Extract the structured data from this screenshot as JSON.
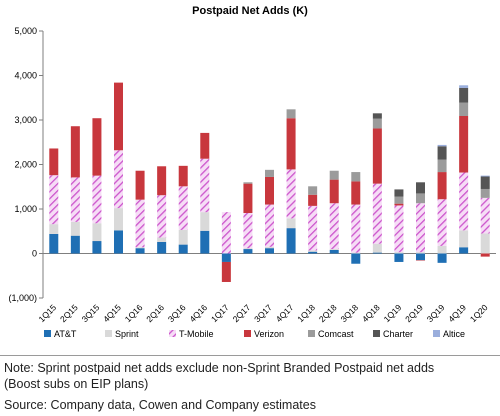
{
  "chart_data": {
    "type": "bar",
    "stacked": true,
    "title": "Postpaid Net Adds (K)",
    "xlabel": "",
    "ylabel": "",
    "ylim": [
      -1000,
      5000
    ],
    "yticks": [
      -1000,
      0,
      1000,
      2000,
      3000,
      4000,
      5000
    ],
    "ytick_labels": [
      "(1,000)",
      "0",
      "1,000",
      "2,000",
      "3,000",
      "4,000",
      "5,000"
    ],
    "grid": false,
    "legend_position": "bottom",
    "categories": [
      "1Q15",
      "2Q15",
      "3Q15",
      "4Q15",
      "1Q16",
      "2Q16",
      "3Q16",
      "4Q16",
      "1Q17",
      "2Q17",
      "3Q17",
      "4Q17",
      "1Q18",
      "2Q18",
      "3Q18",
      "4Q18",
      "1Q19",
      "2Q19",
      "3Q19",
      "4Q19",
      "1Q20"
    ],
    "series": [
      {
        "name": "AT&T",
        "color": "#1f6fb4",
        "values": [
          440,
          400,
          280,
          520,
          120,
          260,
          200,
          510,
          -190,
          100,
          120,
          570,
          40,
          80,
          -230,
          20,
          -190,
          -150,
          -210,
          140,
          0
        ]
      },
      {
        "name": "Sprint",
        "color": "#d9d9d9",
        "values": [
          220,
          310,
          400,
          500,
          20,
          100,
          330,
          420,
          0,
          20,
          30,
          220,
          30,
          20,
          20,
          200,
          30,
          30,
          170,
          380,
          450
        ]
      },
      {
        "name": "T-Mobile",
        "color": "#cc55cc",
        "values": [
          1100,
          1000,
          1070,
          1300,
          1070,
          950,
          980,
          1200,
          930,
          790,
          950,
          1100,
          1000,
          1030,
          1080,
          1350,
          1050,
          1100,
          1050,
          1300,
          800
        ]
      },
      {
        "name": "Verizon",
        "color": "#c8373d",
        "values": [
          600,
          1150,
          1290,
          1520,
          650,
          650,
          460,
          580,
          -450,
          660,
          620,
          1150,
          250,
          530,
          520,
          1240,
          40,
          -10,
          610,
          1270,
          -70
        ]
      },
      {
        "name": "Comcast",
        "color": "#9b9b9b",
        "values": [
          0,
          0,
          0,
          0,
          0,
          0,
          0,
          0,
          0,
          30,
          160,
          200,
          190,
          200,
          210,
          220,
          160,
          220,
          280,
          300,
          200
        ]
      },
      {
        "name": "Charter",
        "color": "#555555",
        "values": [
          0,
          0,
          0,
          0,
          0,
          0,
          0,
          0,
          0,
          0,
          0,
          0,
          0,
          0,
          0,
          120,
          160,
          250,
          300,
          330,
          280
        ]
      },
      {
        "name": "Altice",
        "color": "#9aaedc",
        "values": [
          0,
          0,
          0,
          0,
          0,
          0,
          0,
          0,
          0,
          0,
          0,
          0,
          0,
          0,
          0,
          0,
          0,
          0,
          30,
          60,
          20
        ]
      }
    ]
  },
  "notes": {
    "note_line1": "Note: Sprint postpaid net adds exclude non-Sprint Branded Postpaid net adds",
    "note_line2": "(Boost subs on EIP plans)",
    "source": "Source: Company data, Cowen and Company estimates"
  }
}
